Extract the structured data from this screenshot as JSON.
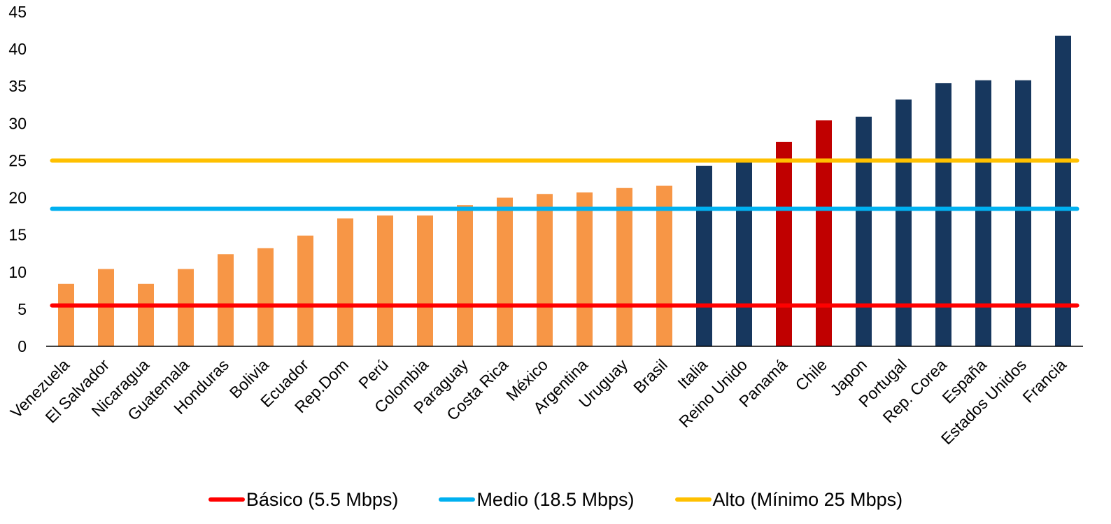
{
  "chart_data": {
    "type": "bar",
    "title": "",
    "xlabel": "",
    "ylabel": "",
    "ylim": [
      0,
      45
    ],
    "yticks": [
      0,
      5,
      10,
      15,
      20,
      25,
      30,
      35,
      40,
      45
    ],
    "grid": false,
    "legend_position": "bottom",
    "categories": [
      "Venezuela",
      "El Salvador",
      "Nicaragua",
      "Guatemala",
      "Honduras",
      "Bolivia",
      "Ecuador",
      "Rep.Dom",
      "Perú",
      "Colombia",
      "Paraguay",
      "Costa Rica",
      "México",
      "Argentina",
      "Uruguay",
      "Brasil",
      "Italia",
      "Reino Unido",
      "Panamá",
      "Chile",
      "Japon",
      "Portugal",
      "Rep. Corea",
      "España",
      "Estados Unidos",
      "Francia"
    ],
    "values": [
      8.4,
      10.4,
      8.4,
      10.4,
      12.4,
      13.2,
      14.9,
      17.2,
      17.6,
      17.6,
      19.0,
      20.0,
      20.5,
      20.7,
      21.3,
      21.6,
      24.3,
      25.0,
      27.5,
      30.4,
      30.9,
      33.2,
      35.4,
      35.8,
      35.8,
      41.8
    ],
    "bar_colors": [
      "#f79646",
      "#f79646",
      "#f79646",
      "#f79646",
      "#f79646",
      "#f79646",
      "#f79646",
      "#f79646",
      "#f79646",
      "#f79646",
      "#f79646",
      "#f79646",
      "#f79646",
      "#f79646",
      "#f79646",
      "#f79646",
      "#17375e",
      "#17375e",
      "#c00000",
      "#c00000",
      "#17375e",
      "#17375e",
      "#17375e",
      "#17375e",
      "#17375e",
      "#17375e"
    ],
    "reference_lines": [
      {
        "name": "Básico (5.5 Mbps)",
        "value": 5.5,
        "color": "#ff0000"
      },
      {
        "name": "Medio (18.5 Mbps)",
        "value": 18.5,
        "color": "#00b0f0"
      },
      {
        "name": "Alto (Mínimo 25 Mbps)",
        "value": 25,
        "color": "#ffc000"
      }
    ]
  }
}
